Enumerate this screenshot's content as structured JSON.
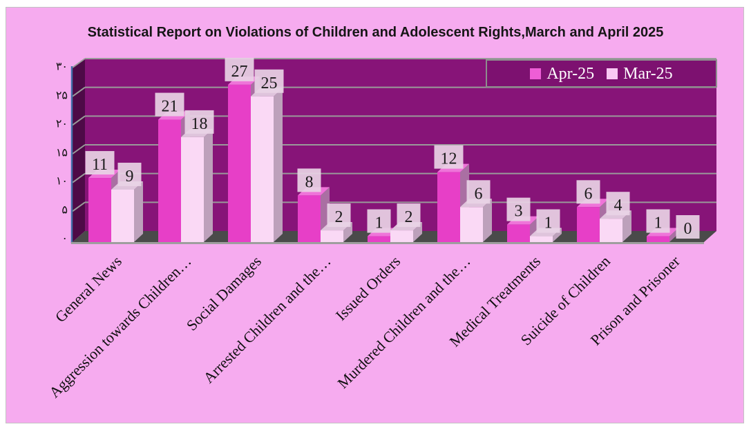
{
  "title": "Statistical Report on Violations of Children and Adolescent Rights,March and April 2025",
  "legend": {
    "position": "top-right",
    "items": [
      {
        "label": "Apr-25",
        "swatch_color": "#ee5ed6"
      },
      {
        "label": "Mar-25",
        "swatch_color": "#f9c8f3"
      }
    ]
  },
  "y_axis": {
    "tick_labels": [
      "۳۰",
      "۲۵",
      "۲۰",
      "۱۵",
      "۱۰",
      "۵",
      "۰"
    ],
    "tick_values": [
      30,
      25,
      20,
      15,
      10,
      5,
      0
    ],
    "numeral_system": "persian"
  },
  "chart_data": {
    "type": "bar",
    "projection": "3d",
    "title": "Statistical Report on Violations of Children and Adolescent Rights,March and April 2025",
    "categories": [
      "General News",
      "Aggression towards Children…",
      "Social Damages",
      "Arrested Children and the…",
      "Issued Orders",
      "Murdered Children and the…",
      "Medical Treatments",
      "Suicide of Children",
      "Prison and Prisoner"
    ],
    "series": [
      {
        "name": "Apr-25",
        "color": "#e73fc7",
        "values": [
          11,
          21,
          27,
          8,
          1,
          12,
          3,
          6,
          1
        ]
      },
      {
        "name": "Mar-25",
        "color": "#fad9f5",
        "values": [
          9,
          18,
          25,
          2,
          2,
          6,
          1,
          4,
          0
        ]
      }
    ],
    "ylim": [
      0,
      30
    ],
    "grid": true,
    "data_labels": true,
    "legend_position": "top-right"
  },
  "colors": {
    "page_background": "#ffffff",
    "chart_background": "#f6abef",
    "wall": "#871478",
    "side_wall": "#4e0a47",
    "floor": "#4a4a4a",
    "floor_edge": "#9e9e9e",
    "gridline": "#9a9a9a",
    "axis_line_blue": "#3f6fa8",
    "legend_background": "#7d1170",
    "legend_border": "#8d8d8d",
    "value_label_box": "#e8d2e5",
    "apr_front": "#e73fc7",
    "apr_top": "#ef74d9",
    "apr_side": "#aa6fa3",
    "mar_front": "#fad9f5",
    "mar_top": "#dfc4dc",
    "mar_side": "#bda1bb",
    "text": "#101010",
    "legend_text": "#ffffff"
  }
}
